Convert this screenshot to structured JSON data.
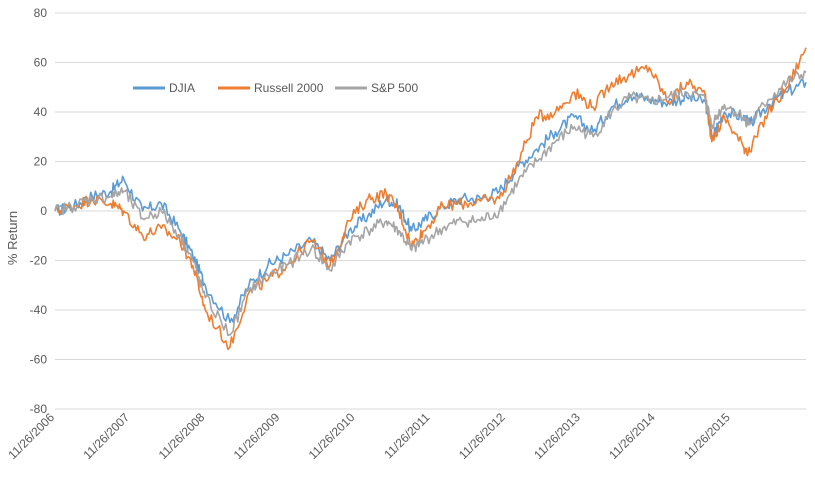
{
  "chart_data": {
    "type": "line",
    "title": "",
    "xlabel": "",
    "ylabel": "% Return",
    "ylim": [
      -80,
      80
    ],
    "yticks": [
      -80,
      -60,
      -40,
      -20,
      0,
      20,
      40,
      60,
      80
    ],
    "x_tick_labels": [
      "11/26/2006",
      "11/26/2007",
      "11/26/2008",
      "11/26/2009",
      "11/26/2010",
      "11/26/2011",
      "11/26/2012",
      "11/26/2013",
      "11/26/2014",
      "11/26/2015"
    ],
    "x_start": "11/26/2006",
    "x_end": "11/26/2016",
    "grid": "horizontal",
    "legend_position": "top-left",
    "x": [
      "2006-11",
      "2007-02",
      "2007-05",
      "2007-08",
      "2007-10",
      "2008-01",
      "2008-04",
      "2008-07",
      "2008-09",
      "2008-11",
      "2009-03",
      "2009-06",
      "2009-09",
      "2009-12",
      "2010-04",
      "2010-07",
      "2010-10",
      "2011-01",
      "2011-04",
      "2011-06",
      "2011-08",
      "2011-10",
      "2012-01",
      "2012-04",
      "2012-07",
      "2012-10",
      "2013-01",
      "2013-04",
      "2013-07",
      "2013-10",
      "2014-01",
      "2014-04",
      "2014-07",
      "2014-10",
      "2015-01",
      "2015-04",
      "2015-07",
      "2015-08",
      "2015-10",
      "2016-01",
      "2016-02",
      "2016-05",
      "2016-08",
      "2016-11"
    ],
    "series": [
      {
        "name": "DJIA",
        "color": "#5B9BD5",
        "values": [
          0,
          2,
          6,
          8,
          13,
          0,
          3,
          -8,
          -18,
          -30,
          -45,
          -30,
          -22,
          -18,
          -12,
          -20,
          -8,
          -2,
          5,
          2,
          -8,
          -4,
          2,
          5,
          5,
          8,
          18,
          25,
          32,
          38,
          32,
          42,
          47,
          45,
          44,
          46,
          44,
          30,
          40,
          38,
          35,
          43,
          48,
          52
        ]
      },
      {
        "name": "Russell 2000",
        "color": "#ED7D31",
        "values": [
          0,
          2,
          5,
          3,
          0,
          -10,
          -7,
          -12,
          -22,
          -40,
          -55,
          -33,
          -28,
          -22,
          -12,
          -22,
          -4,
          5,
          7,
          0,
          -14,
          -8,
          2,
          3,
          4,
          5,
          20,
          38,
          40,
          48,
          42,
          52,
          55,
          58,
          44,
          52,
          47,
          28,
          38,
          26,
          24,
          40,
          50,
          66
        ]
      },
      {
        "name": "S&P 500",
        "color": "#A5A5A5",
        "values": [
          0,
          2,
          5,
          6,
          8,
          -3,
          0,
          -10,
          -20,
          -35,
          -50,
          -32,
          -26,
          -22,
          -15,
          -24,
          -12,
          -8,
          -4,
          -8,
          -16,
          -12,
          -7,
          -4,
          -4,
          0,
          12,
          20,
          28,
          34,
          30,
          40,
          46,
          44,
          46,
          48,
          45,
          35,
          43,
          38,
          35,
          45,
          52,
          56
        ]
      }
    ]
  }
}
